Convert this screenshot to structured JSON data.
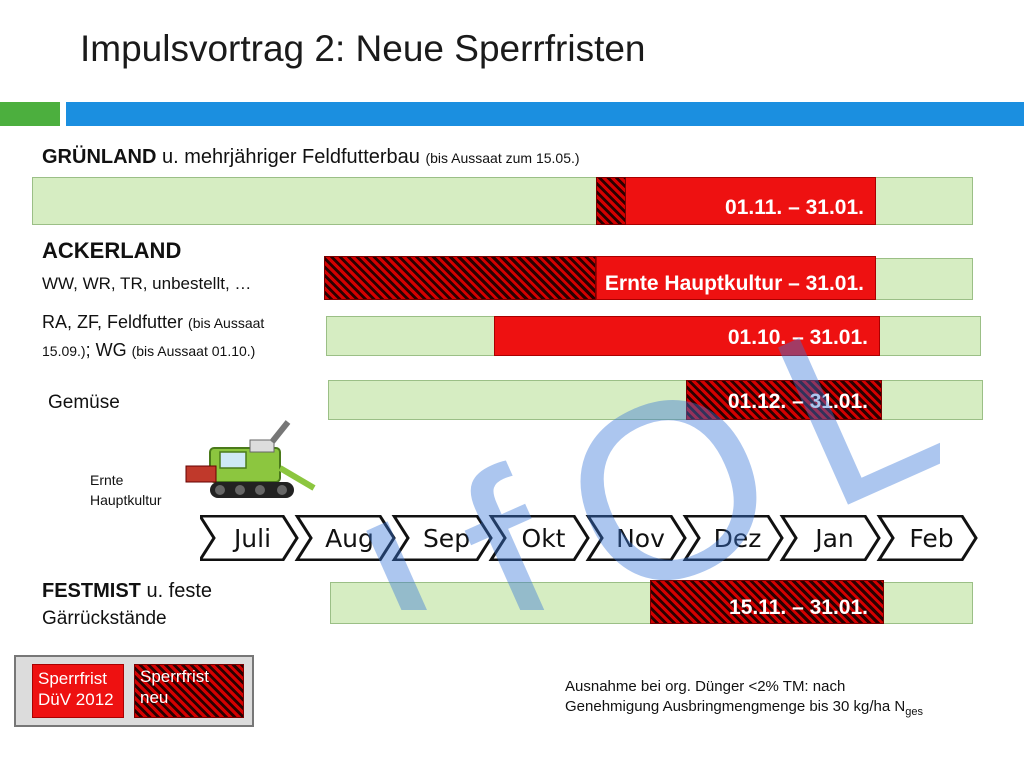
{
  "title": "Impulsvortrag 2: Neue Sperrfristen",
  "rows": {
    "gruenland": {
      "label_bold": "GRÜNLAND",
      "label_rest": " u. mehrjähriger Feldfutterbau ",
      "label_small": "(bis Aussaat zum 15.05.)",
      "period": "01.11. – 31.01."
    },
    "ackerland": {
      "heading": "ACKERLAND",
      "sub": "WW, WR, TR, unbestellt, …",
      "period": "Ernte Hauptkultur – 31.01."
    },
    "ra": {
      "part1": "RA, ZF, Feldfutter ",
      "part1_small": "(bis Aussaat",
      "part2_small": "15.09.)",
      "part2_mid": ";  WG ",
      "part2_small2": "(bis Aussaat 01.10.)",
      "period": "01.10. – 31.01."
    },
    "gemuese": {
      "label": "Gemüse",
      "period": "01.12. – 31.01."
    },
    "festmist": {
      "label_bold": "FESTMIST",
      "label_rest": " u. feste",
      "label_line2": "Gärrückstände",
      "period": "15.11. – 31.01."
    }
  },
  "harvester_label": "Ernte\nHauptkultur",
  "months": [
    "Juli",
    "Aug",
    "Sep",
    "Okt",
    "Nov",
    "Dez",
    "Jan",
    "Feb"
  ],
  "legend": {
    "old": "Sperrfrist\nDüV 2012",
    "new": "Sperrfrist\nneu"
  },
  "note": {
    "line1": "Ausnahme bei org. Dünger <2% TM: nach",
    "line2": "Genehmigung Ausbringmengmenge bis 30 kg/ha N",
    "line2_sub": "ges"
  },
  "watermark": "IfOL",
  "colors": {
    "green_bar": "#d6edc2",
    "red": "#ee1111",
    "accent_blue": "#1b8fe0",
    "accent_green": "#4caf3e"
  }
}
